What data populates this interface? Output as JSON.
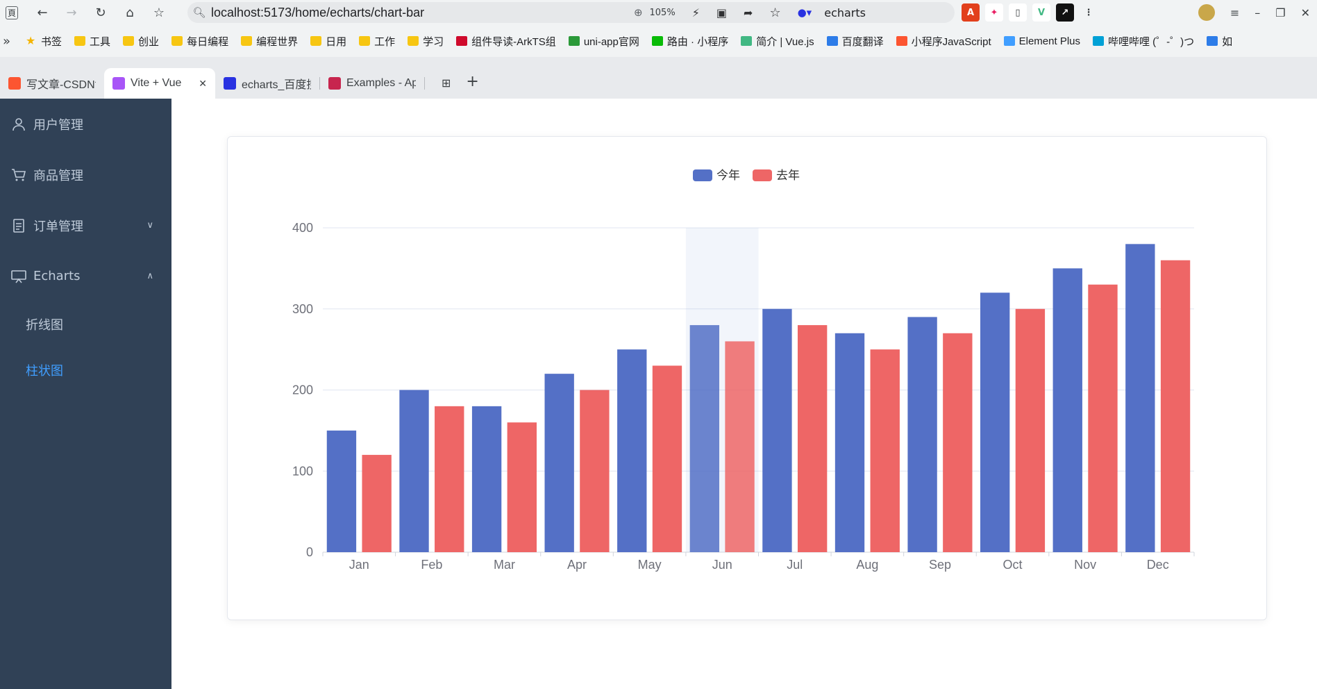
{
  "browser": {
    "url": "localhost:5173/home/echarts/chart-bar",
    "zoom": "105%",
    "search_engine": "echarts",
    "bookmarks": [
      {
        "label": "书签",
        "icon": "star-icon",
        "color": "#f4b400"
      },
      {
        "label": "工具",
        "icon": "folder-icon",
        "color": "#f7c612"
      },
      {
        "label": "创业",
        "icon": "folder-icon",
        "color": "#f7c612"
      },
      {
        "label": "每日编程",
        "icon": "folder-icon",
        "color": "#f7c612"
      },
      {
        "label": "编程世界",
        "icon": "folder-icon",
        "color": "#f7c612"
      },
      {
        "label": "日用",
        "icon": "folder-icon",
        "color": "#f7c612"
      },
      {
        "label": "工作",
        "icon": "folder-icon",
        "color": "#f7c612"
      },
      {
        "label": "学习",
        "icon": "folder-icon",
        "color": "#f7c612"
      },
      {
        "label": "组件导读-ArkTS组",
        "icon": "huawei-icon",
        "color": "#cf0a2c"
      },
      {
        "label": "uni-app官网",
        "icon": "uniapp-icon",
        "color": "#2b9939"
      },
      {
        "label": "路由 · 小程序",
        "icon": "wechat-icon",
        "color": "#09bb07"
      },
      {
        "label": "简介 | Vue.js",
        "icon": "vue-icon",
        "color": "#41b883"
      },
      {
        "label": "百度翻译",
        "icon": "translate-icon",
        "color": "#2d7ce8"
      },
      {
        "label": "小程序JavaScript",
        "icon": "csdn-icon",
        "color": "#fc5531"
      },
      {
        "label": "Element Plus",
        "icon": "element-icon",
        "color": "#409eff"
      },
      {
        "label": "哔哩哔哩 (゜-゜)つ",
        "icon": "bilibili-icon",
        "color": "#00a1d6"
      },
      {
        "label": "如",
        "icon": "code-icon",
        "color": "#2d7ce8"
      }
    ],
    "tabs": [
      {
        "label": "写文章-CSDN博",
        "icon": "csdn-icon",
        "color": "#fc5531",
        "active": false
      },
      {
        "label": "Vite + Vue",
        "icon": "vite-icon",
        "color": "#a855f7",
        "active": true
      },
      {
        "label": "echarts_百度搜",
        "icon": "baidu-icon",
        "color": "#2932e1",
        "active": false
      },
      {
        "label": "Examples - Ap",
        "icon": "apache-icon",
        "color": "#c7254e",
        "active": false
      }
    ]
  },
  "sidebar": {
    "items": [
      {
        "label": "用户管理",
        "icon": "user-icon"
      },
      {
        "label": "商品管理",
        "icon": "cart-icon"
      },
      {
        "label": "订单管理",
        "icon": "document-icon",
        "arrow": "down"
      },
      {
        "label": "Echarts",
        "icon": "monitor-icon",
        "arrow": "up"
      }
    ],
    "sub_items": [
      {
        "label": "折线图",
        "active": false
      },
      {
        "label": "柱状图",
        "active": true
      }
    ],
    "colors": {
      "bg": "#304156",
      "text": "#bfcbd9",
      "active": "#409eff"
    }
  },
  "chart_data": {
    "type": "bar",
    "categories": [
      "Jan",
      "Feb",
      "Mar",
      "Apr",
      "May",
      "Jun",
      "Jul",
      "Aug",
      "Sep",
      "Oct",
      "Nov",
      "Dec"
    ],
    "series": [
      {
        "name": "今年",
        "color": "#5470c6",
        "values": [
          150,
          200,
          180,
          220,
          250,
          280,
          300,
          270,
          290,
          320,
          350,
          380
        ]
      },
      {
        "name": "去年",
        "color": "#ee6666",
        "values": [
          120,
          180,
          160,
          200,
          230,
          260,
          280,
          250,
          270,
          300,
          330,
          360
        ]
      }
    ],
    "ylim": [
      0,
      400
    ],
    "yticks": [
      0,
      100,
      200,
      300,
      400
    ],
    "grid": true,
    "legend": "top-center",
    "highlighted_category": "Jun"
  }
}
